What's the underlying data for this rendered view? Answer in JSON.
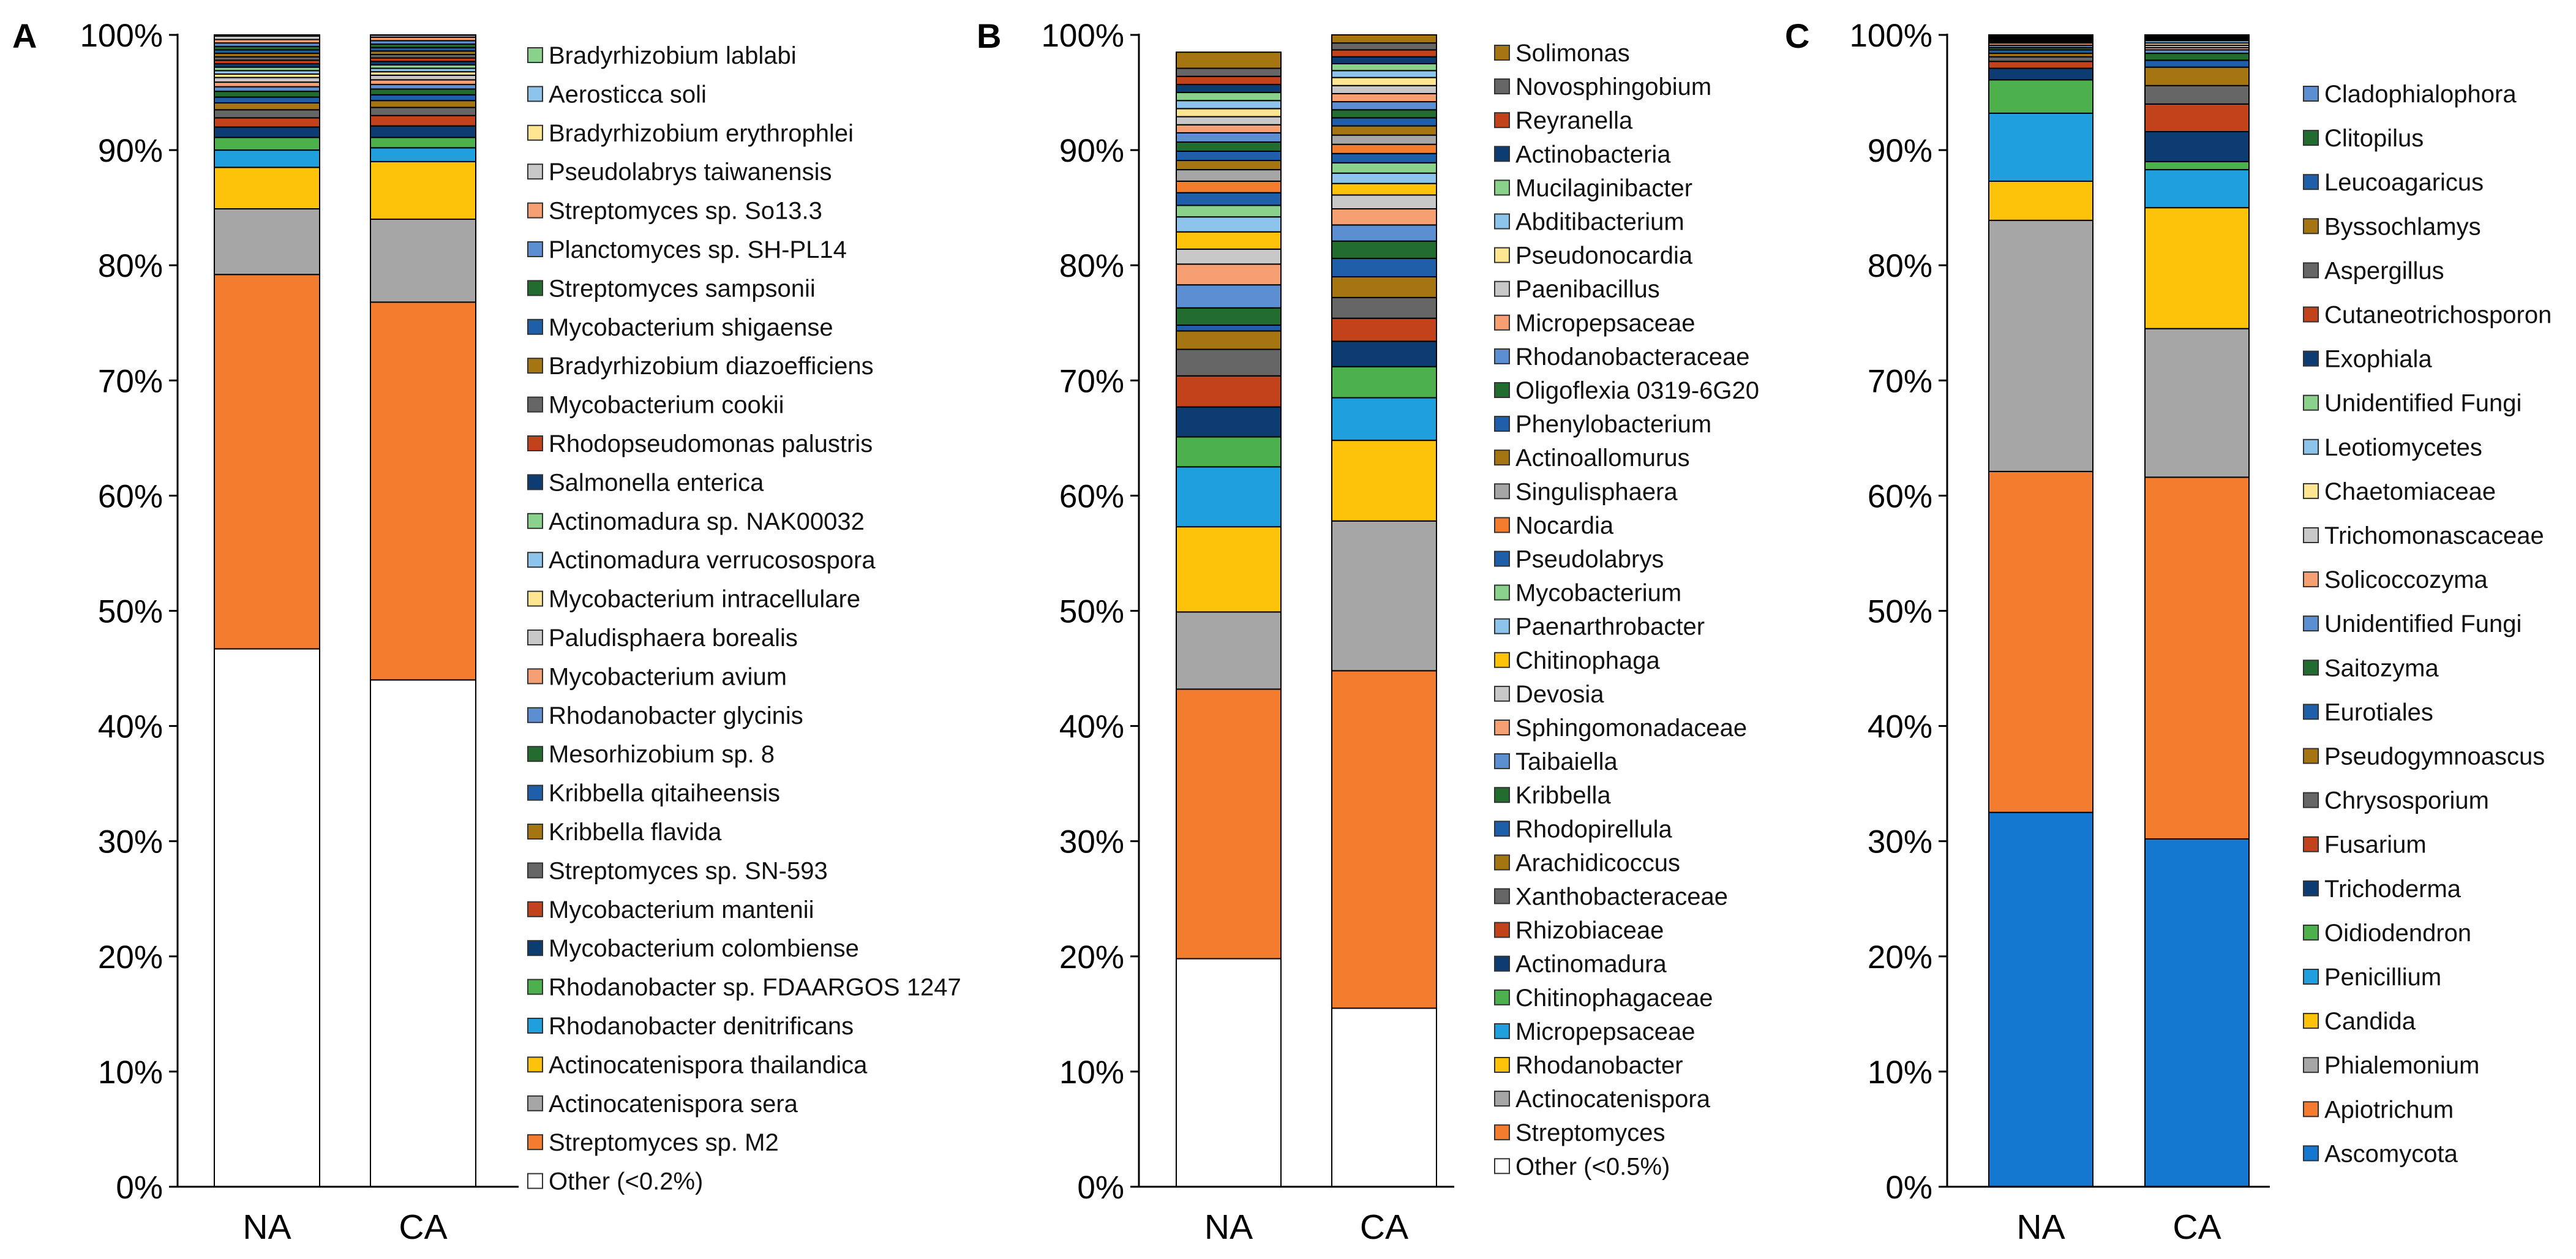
{
  "colors": {
    "orange": "#f47c2f",
    "gray": "#a6a6a6",
    "yellow": "#fdc20a",
    "lightblue": "#209fde",
    "green": "#4cb04c",
    "navy": "#0c3c72",
    "rust": "#c1421b",
    "dimgray": "#666666",
    "olive": "#a57512",
    "darkgreen": "#236c2f",
    "blue": "#1f5ea8",
    "cornflower": "#5c8fd2",
    "salmon": "#f69f72",
    "silver": "#c8c8c8",
    "pale_yellow": "#fde591",
    "sky": "#8dc4ec",
    "mint": "#8ad28b",
    "deep_blue": "#1477d0",
    "white": "#ffffff"
  },
  "chart_data": [
    {
      "panel": "A",
      "type": "stacked_bar_100",
      "categories": [
        "NA",
        "CA"
      ],
      "yticks": [
        "0%",
        "10%",
        "20%",
        "30%",
        "40%",
        "50%",
        "60%",
        "70%",
        "80%",
        "90%",
        "100%"
      ],
      "ylim": [
        0,
        100
      ],
      "legend_order": "reverse",
      "series": [
        {
          "name": "Other (<0.2%)",
          "color": "white",
          "values": [
            46.7,
            44.0
          ]
        },
        {
          "name": "Streptomyces sp. M2",
          "color": "orange",
          "values": [
            32.5,
            32.8
          ]
        },
        {
          "name": "Actinocatenispora sera",
          "color": "gray",
          "values": [
            5.7,
            7.2
          ]
        },
        {
          "name": "Actinocatenispora thailandica",
          "color": "yellow",
          "values": [
            3.6,
            5.0
          ]
        },
        {
          "name": "Rhodanobacter denitrificans",
          "color": "lightblue",
          "values": [
            1.5,
            1.2
          ]
        },
        {
          "name": "Rhodanobacter sp. FDAARGOS 1247",
          "color": "green",
          "values": [
            1.1,
            0.9
          ]
        },
        {
          "name": "Mycobacterium colombiense",
          "color": "navy",
          "values": [
            0.9,
            1.0
          ]
        },
        {
          "name": "Mycobacterium mantenii",
          "color": "rust",
          "values": [
            0.8,
            0.9
          ]
        },
        {
          "name": "Streptomyces sp. SN-593",
          "color": "dimgray",
          "values": [
            0.7,
            0.7
          ]
        },
        {
          "name": "Kribbella flavida",
          "color": "olive",
          "values": [
            0.6,
            0.6
          ]
        },
        {
          "name": "Kribbella qitaiheensis",
          "color": "blue",
          "values": [
            0.5,
            0.5
          ]
        },
        {
          "name": "Mesorhizobium sp. 8",
          "color": "darkgreen",
          "values": [
            0.5,
            0.5
          ]
        },
        {
          "name": "Rhodanobacter glycinis",
          "color": "cornflower",
          "values": [
            0.4,
            0.4
          ]
        },
        {
          "name": "Mycobacterium avium",
          "color": "salmon",
          "values": [
            0.4,
            0.4
          ]
        },
        {
          "name": "Paludisphaera borealis",
          "color": "silver",
          "values": [
            0.4,
            0.4
          ]
        },
        {
          "name": "Mycobacterium intracellulare",
          "color": "pale_yellow",
          "values": [
            0.3,
            0.3
          ]
        },
        {
          "name": "Actinomadura verrucosospora",
          "color": "sky",
          "values": [
            0.3,
            0.3
          ]
        },
        {
          "name": "Actinomadura sp. NAK00032",
          "color": "mint",
          "values": [
            0.3,
            0.3
          ]
        },
        {
          "name": "Salmonella enterica",
          "color": "navy",
          "values": [
            0.3,
            0.3
          ]
        },
        {
          "name": "Rhodopseudomonas palustris",
          "color": "rust",
          "values": [
            0.3,
            0.3
          ]
        },
        {
          "name": "Mycobacterium cookii",
          "color": "dimgray",
          "values": [
            0.3,
            0.3
          ]
        },
        {
          "name": "Bradyrhizobium diazoefficiens",
          "color": "olive",
          "values": [
            0.3,
            0.3
          ]
        },
        {
          "name": "Mycobacterium shigaense",
          "color": "blue",
          "values": [
            0.3,
            0.3
          ]
        },
        {
          "name": "Streptomyces sampsonii",
          "color": "darkgreen",
          "values": [
            0.3,
            0.3
          ]
        },
        {
          "name": "Planctomyces sp. SH-PL14",
          "color": "cornflower",
          "values": [
            0.3,
            0.3
          ]
        },
        {
          "name": "Streptomyces sp. So13.3",
          "color": "salmon",
          "values": [
            0.3,
            0.3
          ]
        },
        {
          "name": "Pseudolabrys taiwanensis",
          "color": "silver",
          "values": [
            0.3,
            0.3
          ]
        },
        {
          "name": "Bradyrhizobium erythrophlei",
          "color": "pale_yellow",
          "values": [
            0.3,
            0.3
          ]
        },
        {
          "name": "Aerosticca soli",
          "color": "sky",
          "values": [
            0.3,
            0.3
          ]
        },
        {
          "name": "Bradyrhizobium lablabi",
          "color": "mint",
          "values": [
            0.3,
            0.3
          ]
        }
      ]
    },
    {
      "panel": "B",
      "type": "stacked_bar_100",
      "categories": [
        "NA",
        "CA"
      ],
      "yticks": [
        "0%",
        "10%",
        "20%",
        "30%",
        "40%",
        "50%",
        "60%",
        "70%",
        "80%",
        "90%",
        "100%"
      ],
      "ylim": [
        0,
        100
      ],
      "legend_order": "reverse",
      "series": [
        {
          "name": "Other (<0.5%)",
          "color": "white",
          "values": [
            19.8,
            15.5
          ]
        },
        {
          "name": "Streptomyces",
          "color": "orange",
          "values": [
            23.4,
            29.3
          ]
        },
        {
          "name": "Actinocatenispora",
          "color": "gray",
          "values": [
            6.7,
            13.0
          ]
        },
        {
          "name": "Rhodanobacter",
          "color": "yellow",
          "values": [
            7.4,
            7.0
          ]
        },
        {
          "name": "Micropepsaceae",
          "color": "lightblue",
          "values": [
            5.2,
            3.7
          ]
        },
        {
          "name": "Chitinophagaceae",
          "color": "green",
          "values": [
            2.6,
            2.7
          ]
        },
        {
          "name": "Actinomadura",
          "color": "navy",
          "values": [
            2.6,
            2.2
          ]
        },
        {
          "name": "Rhizobiaceae",
          "color": "rust",
          "values": [
            2.7,
            2.0
          ]
        },
        {
          "name": "Xanthobacteraceae",
          "color": "dimgray",
          "values": [
            2.3,
            1.8
          ]
        },
        {
          "name": "Arachidicoccus",
          "color": "olive",
          "values": [
            1.6,
            1.8
          ]
        },
        {
          "name": "Rhodopirellula",
          "color": "blue",
          "values": [
            0.5,
            1.6
          ]
        },
        {
          "name": "Kribbella",
          "color": "darkgreen",
          "values": [
            1.5,
            1.5
          ]
        },
        {
          "name": "Taibaiella",
          "color": "cornflower",
          "values": [
            2.0,
            1.4
          ]
        },
        {
          "name": "Sphingomonadaceae",
          "color": "salmon",
          "values": [
            1.8,
            1.4
          ]
        },
        {
          "name": "Devosia",
          "color": "silver",
          "values": [
            1.3,
            1.2
          ]
        },
        {
          "name": "Chitinophaga",
          "color": "yellow",
          "values": [
            1.5,
            1.0
          ]
        },
        {
          "name": "Paenarthrobacter",
          "color": "sky",
          "values": [
            1.3,
            0.9
          ]
        },
        {
          "name": "Mycobacterium",
          "color": "mint",
          "values": [
            1.0,
            0.9
          ]
        },
        {
          "name": "Pseudolabrys",
          "color": "blue",
          "values": [
            1.1,
            0.8
          ]
        },
        {
          "name": "Nocardia",
          "color": "orange",
          "values": [
            1.0,
            0.8
          ]
        },
        {
          "name": "Singulisphaera",
          "color": "gray",
          "values": [
            1.0,
            0.8
          ]
        },
        {
          "name": "Actinoallomurus",
          "color": "olive",
          "values": [
            0.8,
            0.8
          ]
        },
        {
          "name": "Phenylobacterium",
          "color": "blue",
          "values": [
            0.8,
            0.7
          ]
        },
        {
          "name": "Oligoflexia 0319-6G20",
          "color": "darkgreen",
          "values": [
            0.8,
            0.7
          ]
        },
        {
          "name": "Rhodanobacteraceae",
          "color": "cornflower",
          "values": [
            0.8,
            0.7
          ]
        },
        {
          "name": "Micropepsaceae",
          "color": "salmon",
          "values": [
            0.7,
            0.7
          ]
        },
        {
          "name": "Paenibacillus",
          "color": "silver",
          "values": [
            0.7,
            0.7
          ]
        },
        {
          "name": "Pseudonocardia",
          "color": "pale_yellow",
          "values": [
            0.7,
            0.7
          ]
        },
        {
          "name": "Abditibacterium",
          "color": "sky",
          "values": [
            0.7,
            0.6
          ]
        },
        {
          "name": "Mucilaginibacter",
          "color": "mint",
          "values": [
            0.7,
            0.6
          ]
        },
        {
          "name": "Actinobacteria",
          "color": "navy",
          "values": [
            0.7,
            0.6
          ]
        },
        {
          "name": "Reyranella",
          "color": "rust",
          "values": [
            0.7,
            0.6
          ]
        },
        {
          "name": "Novosphingobium",
          "color": "dimgray",
          "values": [
            0.7,
            0.6
          ]
        },
        {
          "name": "Solimonas",
          "color": "olive",
          "values": [
            1.4,
            0.8
          ]
        }
      ]
    },
    {
      "panel": "C",
      "type": "stacked_bar_100",
      "categories": [
        "NA",
        "CA"
      ],
      "yticks": [
        "0%",
        "10%",
        "20%",
        "30%",
        "40%",
        "50%",
        "60%",
        "70%",
        "80%",
        "90%",
        "100%"
      ],
      "ylim": [
        0,
        100
      ],
      "legend_order": "reverse",
      "series": [
        {
          "name": "Ascomycota",
          "color": "deep_blue",
          "values": [
            32.5,
            30.2
          ]
        },
        {
          "name": "Apiotrichum",
          "color": "orange",
          "values": [
            29.6,
            31.4
          ]
        },
        {
          "name": "Phialemonium",
          "color": "gray",
          "values": [
            21.8,
            12.9
          ]
        },
        {
          "name": "Candida",
          "color": "yellow",
          "values": [
            3.4,
            10.5
          ]
        },
        {
          "name": "Penicillium",
          "color": "lightblue",
          "values": [
            5.9,
            3.3
          ]
        },
        {
          "name": "Oidiodendron",
          "color": "green",
          "values": [
            2.9,
            0.7
          ]
        },
        {
          "name": "Trichoderma",
          "color": "navy",
          "values": [
            1.0,
            2.6
          ]
        },
        {
          "name": "Fusarium",
          "color": "rust",
          "values": [
            0.6,
            2.4
          ]
        },
        {
          "name": "Chrysosporium",
          "color": "dimgray",
          "values": [
            0.4,
            1.6
          ]
        },
        {
          "name": "Pseudogymnoascus",
          "color": "olive",
          "values": [
            0.3,
            1.6
          ]
        },
        {
          "name": "Eurotiales",
          "color": "blue",
          "values": [
            0.3,
            0.6
          ]
        },
        {
          "name": "Saitozyma",
          "color": "darkgreen",
          "values": [
            0.2,
            0.6
          ]
        },
        {
          "name": "Unidentified Fungi",
          "color": "cornflower",
          "values": [
            0.2,
            0.3
          ]
        },
        {
          "name": "Solicoccozyma",
          "color": "salmon",
          "values": [
            0.2,
            0.2
          ]
        },
        {
          "name": "Trichomonascaceae",
          "color": "silver",
          "values": [
            0.1,
            0.2
          ]
        },
        {
          "name": "Chaetomiaceae",
          "color": "pale_yellow",
          "values": [
            0.1,
            0.2
          ]
        },
        {
          "name": "Leotiomycetes",
          "color": "sky",
          "values": [
            0.1,
            0.2
          ]
        },
        {
          "name": "Unidentified Fungi",
          "color": "mint",
          "values": [
            0.1,
            0.1
          ]
        },
        {
          "name": "Exophiala",
          "color": "navy",
          "values": [
            0.1,
            0.1
          ]
        },
        {
          "name": "Cutaneotrichosporon",
          "color": "rust",
          "values": [
            0.05,
            0.1
          ]
        },
        {
          "name": "Aspergillus",
          "color": "dimgray",
          "values": [
            0.05,
            0.05
          ]
        },
        {
          "name": "Byssochlamys",
          "color": "olive",
          "values": [
            0.05,
            0.05
          ]
        },
        {
          "name": "Leucoagaricus",
          "color": "blue",
          "values": [
            0.05,
            0.05
          ]
        },
        {
          "name": "Clitopilus",
          "color": "darkgreen",
          "values": [
            0.05,
            0.05
          ]
        },
        {
          "name": "Cladophialophora",
          "color": "cornflower",
          "values": [
            0.05,
            0.05
          ]
        }
      ]
    }
  ]
}
